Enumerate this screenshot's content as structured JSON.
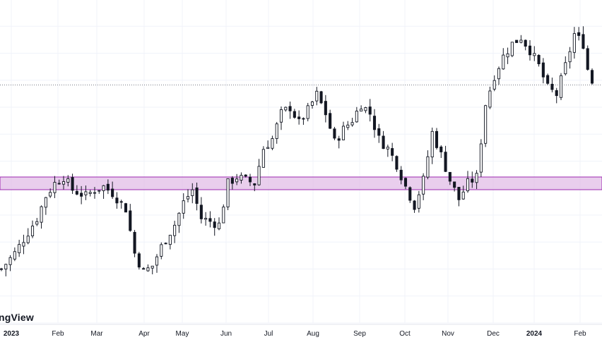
{
  "watermark": "ngView",
  "chart_data": {
    "type": "candlestick",
    "x_ticks": [
      {
        "label": "2023",
        "bold": true
      },
      {
        "label": "Feb",
        "bold": false
      },
      {
        "label": "Mar",
        "bold": false
      },
      {
        "label": "Apr",
        "bold": false
      },
      {
        "label": "May",
        "bold": false
      },
      {
        "label": "Jun",
        "bold": false
      },
      {
        "label": "Jul",
        "bold": false
      },
      {
        "label": "Aug",
        "bold": false
      },
      {
        "label": "Sep",
        "bold": false
      },
      {
        "label": "Oct",
        "bold": false
      },
      {
        "label": "Nov",
        "bold": false
      },
      {
        "label": "Dec",
        "bold": false
      },
      {
        "label": "2024",
        "bold": true
      },
      {
        "label": "Feb",
        "bold": false
      }
    ],
    "ylim": [
      0,
      100
    ],
    "zone": {
      "from": 42.0,
      "to": 46.0,
      "color": "#e1bee7",
      "border": "#9c27b0"
    },
    "last_price_level": 75.0,
    "candle_color": "#131722",
    "grid": true,
    "anchors": [
      [
        0,
        17
      ],
      [
        3,
        22
      ],
      [
        8,
        33
      ],
      [
        10,
        40
      ],
      [
        12,
        44
      ],
      [
        14,
        46
      ],
      [
        16,
        42
      ],
      [
        19,
        40
      ],
      [
        21,
        42
      ],
      [
        23,
        43
      ],
      [
        25,
        41
      ],
      [
        28,
        36
      ],
      [
        30,
        22
      ],
      [
        32,
        16
      ],
      [
        34,
        18
      ],
      [
        36,
        24
      ],
      [
        39,
        31
      ],
      [
        41,
        38
      ],
      [
        43,
        42
      ],
      [
        45,
        33
      ],
      [
        47,
        32
      ],
      [
        49,
        31
      ],
      [
        51,
        44
      ],
      [
        53,
        46
      ],
      [
        55,
        45
      ],
      [
        57,
        44
      ],
      [
        59,
        55
      ],
      [
        61,
        58
      ],
      [
        63,
        66
      ],
      [
        65,
        68
      ],
      [
        67,
        63
      ],
      [
        69,
        67
      ],
      [
        71,
        72
      ],
      [
        73,
        66
      ],
      [
        75,
        57
      ],
      [
        77,
        61
      ],
      [
        79,
        64
      ],
      [
        81,
        69
      ],
      [
        83,
        66
      ],
      [
        85,
        58
      ],
      [
        87,
        55
      ],
      [
        89,
        50
      ],
      [
        91,
        43
      ],
      [
        93,
        37
      ],
      [
        95,
        45
      ],
      [
        97,
        60
      ],
      [
        99,
        53
      ],
      [
        101,
        45
      ],
      [
        103,
        39
      ],
      [
        105,
        44
      ],
      [
        107,
        46
      ],
      [
        109,
        69
      ],
      [
        111,
        78
      ],
      [
        113,
        84
      ],
      [
        115,
        88
      ],
      [
        117,
        90
      ],
      [
        119,
        86
      ],
      [
        121,
        81
      ],
      [
        123,
        74
      ],
      [
        125,
        72
      ],
      [
        127,
        81
      ],
      [
        129,
        91
      ],
      [
        131,
        88
      ],
      [
        132,
        80
      ],
      [
        133,
        76
      ]
    ],
    "candles_count": 134
  }
}
